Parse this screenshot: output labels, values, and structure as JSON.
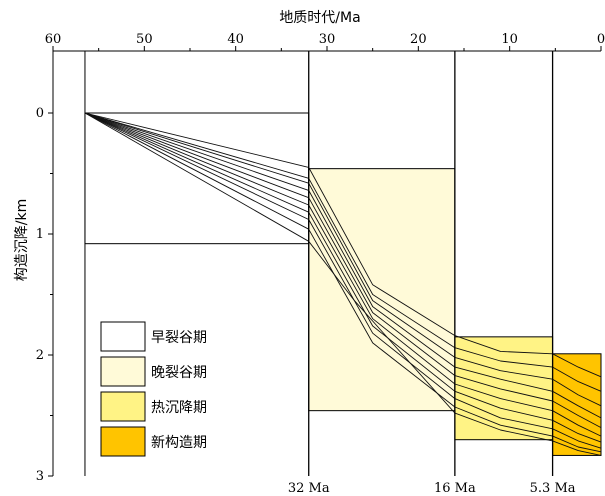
{
  "chart_data": {
    "type": "line",
    "title": "",
    "xlabel": "地质时代/Ma",
    "ylabel": "构造沉降/km",
    "xlim": [
      60,
      0
    ],
    "ylim": [
      0,
      3
    ],
    "x_reversed": true,
    "y_reversed": true,
    "x_ticks": [
      60,
      50,
      40,
      30,
      20,
      10,
      0
    ],
    "y_ticks": [
      0,
      1,
      2,
      3
    ],
    "boundary_labels": [
      {
        "x": 32,
        "label": "32 Ma"
      },
      {
        "x": 16,
        "label": "16 Ma"
      },
      {
        "x": 5.3,
        "label": "5.3 Ma"
      }
    ],
    "phases": [
      {
        "name": "早裂谷期",
        "color": "#ffffff",
        "x_start": 56.5,
        "x_end": 32,
        "y_top": 0.0,
        "y_bottom": 1.08
      },
      {
        "name": "晚裂谷期",
        "color": "#fffad8",
        "x_start": 32,
        "x_end": 16,
        "y_top": 0.46,
        "y_bottom": 2.46
      },
      {
        "name": "热沉降期",
        "color": "#fff385",
        "x_start": 16,
        "x_end": 5.3,
        "y_top": 1.85,
        "y_bottom": 2.7
      },
      {
        "name": "新构造期",
        "color": "#ffc400",
        "x_start": 5.3,
        "x_end": 0,
        "y_top": 1.99,
        "y_bottom": 2.83
      }
    ],
    "series": [
      {
        "x": [
          56.5,
          32,
          25,
          16,
          11,
          5.3,
          2.5,
          0
        ],
        "values": [
          0,
          0.45,
          1.42,
          1.84,
          1.97,
          1.99,
          2.1,
          2.18
        ]
      },
      {
        "x": [
          56.5,
          32,
          25,
          16,
          11,
          5.3,
          2.5,
          0
        ],
        "values": [
          0,
          0.54,
          1.5,
          1.94,
          2.05,
          2.1,
          2.22,
          2.3
        ]
      },
      {
        "x": [
          56.5,
          32,
          25,
          16,
          11,
          5.3,
          2.5,
          0
        ],
        "values": [
          0,
          0.58,
          1.55,
          2.02,
          2.13,
          2.2,
          2.33,
          2.42
        ]
      },
      {
        "x": [
          56.5,
          32,
          25,
          16,
          11,
          5.3,
          2.5,
          0
        ],
        "values": [
          0,
          0.64,
          1.6,
          2.1,
          2.2,
          2.3,
          2.42,
          2.52
        ]
      },
      {
        "x": [
          56.5,
          32,
          25,
          16,
          11,
          5.3,
          2.5,
          0
        ],
        "values": [
          0,
          0.7,
          1.65,
          2.17,
          2.28,
          2.38,
          2.5,
          2.6
        ]
      },
      {
        "x": [
          56.5,
          32,
          25,
          16,
          11,
          5.3,
          2.5,
          0
        ],
        "values": [
          0,
          0.76,
          1.7,
          2.24,
          2.36,
          2.46,
          2.58,
          2.67
        ]
      },
      {
        "x": [
          56.5,
          32,
          25,
          16,
          11,
          5.3,
          2.5,
          0
        ],
        "values": [
          0,
          0.82,
          1.76,
          2.3,
          2.44,
          2.54,
          2.65,
          2.72
        ]
      },
      {
        "x": [
          56.5,
          32,
          25,
          16,
          11,
          5.3,
          2.5,
          0
        ],
        "values": [
          0,
          0.88,
          1.82,
          2.36,
          2.52,
          2.61,
          2.71,
          2.77
        ]
      },
      {
        "x": [
          56.5,
          32,
          25,
          16,
          11,
          5.3,
          2.5,
          0
        ],
        "values": [
          0,
          0.96,
          1.9,
          2.43,
          2.58,
          2.67,
          2.76,
          2.8
        ]
      },
      {
        "x": [
          56.5,
          32,
          27,
          16,
          11,
          5.3,
          2.5,
          0
        ],
        "values": [
          0,
          1.06,
          1.55,
          2.48,
          2.62,
          2.71,
          2.79,
          2.83
        ]
      }
    ],
    "legend": [
      {
        "label": "早裂谷期",
        "color": "#ffffff"
      },
      {
        "label": "晚裂谷期",
        "color": "#fffad8"
      },
      {
        "label": "热沉降期",
        "color": "#fff385"
      },
      {
        "label": "新构造期",
        "color": "#ffc400"
      }
    ]
  }
}
